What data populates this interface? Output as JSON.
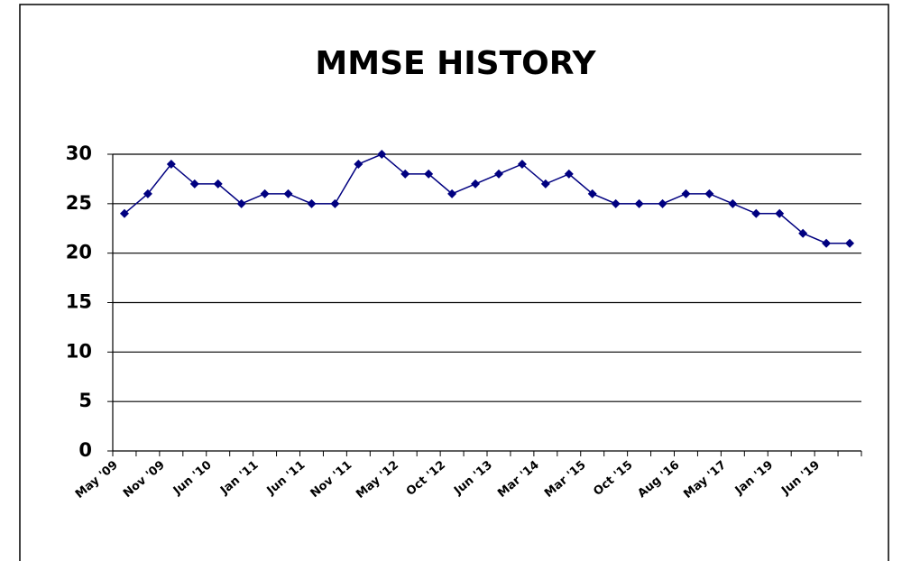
{
  "chart_data": {
    "type": "line",
    "title": "MMSE HISTORY",
    "categories": [
      "May '09",
      null,
      "Nov '09",
      null,
      "Jun '10",
      null,
      "Jan '11",
      null,
      "Jun '11",
      null,
      "Nov '11",
      null,
      "May '12",
      null,
      "Oct '12",
      null,
      "Jun '13",
      null,
      "Mar '14",
      null,
      "Mar '15",
      null,
      "Oct '15",
      null,
      "Aug '16",
      null,
      "May '17",
      null,
      "Jan '19",
      null,
      "Jun '19",
      null
    ],
    "series": [
      {
        "name": "MMSE",
        "color": "#000080",
        "values": [
          24,
          26,
          29,
          27,
          27,
          25,
          26,
          26,
          25,
          25,
          29,
          30,
          28,
          28,
          26,
          27,
          28,
          29,
          27,
          28,
          26,
          25,
          25,
          25,
          26,
          26,
          25,
          24,
          24,
          22,
          21,
          21
        ]
      }
    ],
    "ylim": [
      0,
      30
    ],
    "yticks": [
      0,
      5,
      10,
      15,
      20,
      25,
      30
    ],
    "grid": true
  }
}
